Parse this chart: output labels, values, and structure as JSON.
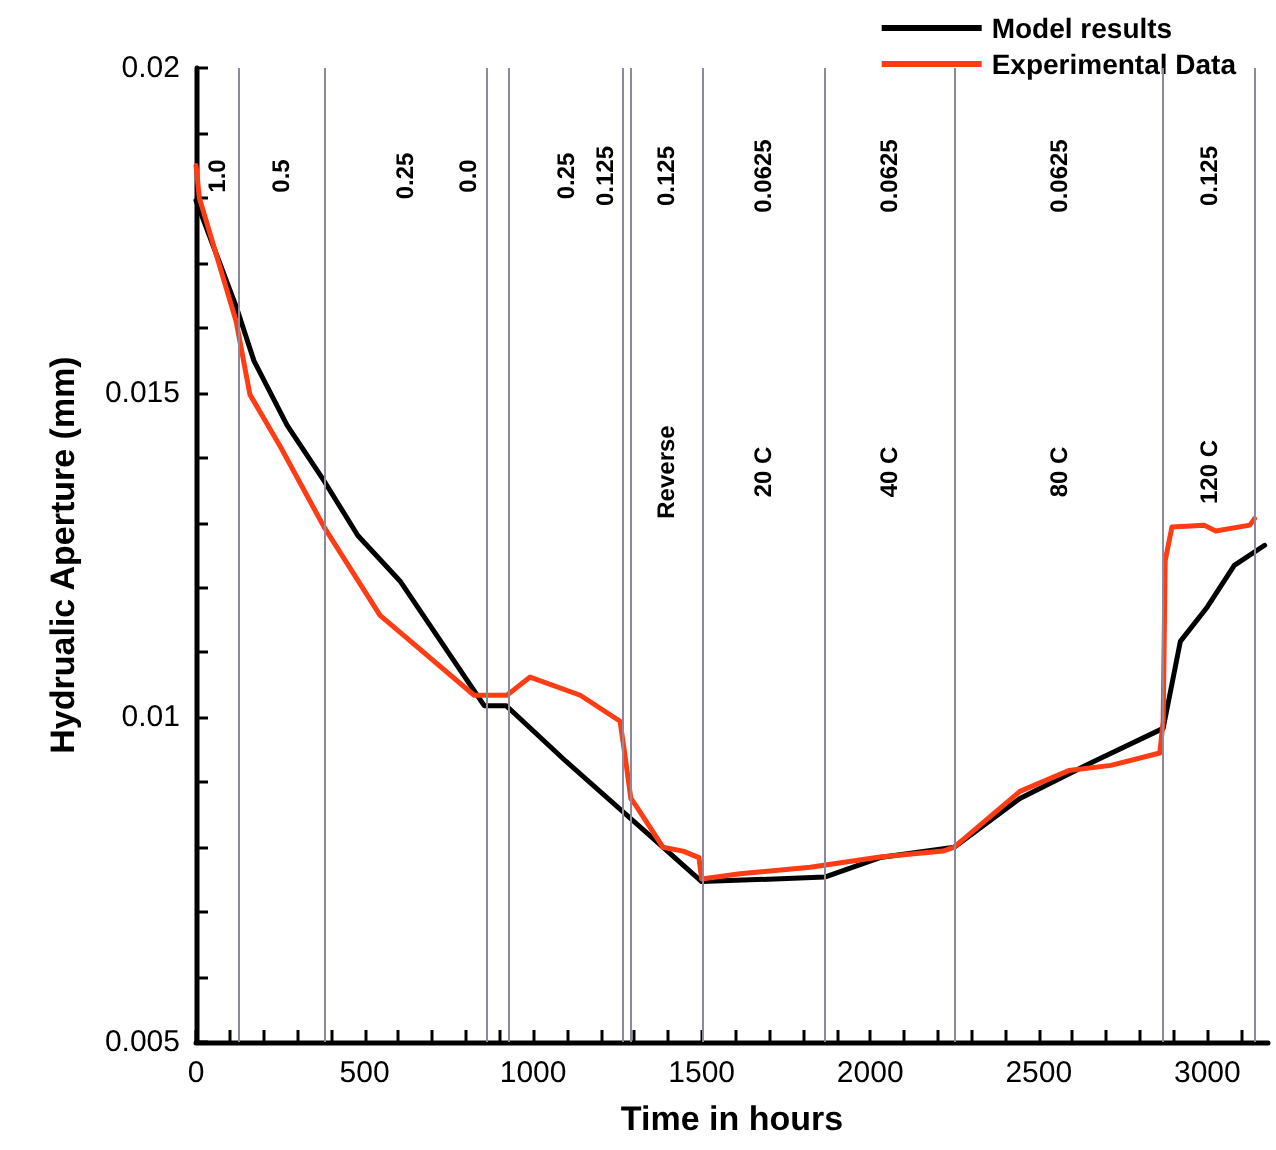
{
  "chart_data": {
    "type": "line",
    "xlabel": "Time in hours",
    "ylabel": "Hydrualic Aperture (mm)",
    "xlim": [
      0,
      3180
    ],
    "ylim": [
      0.005,
      0.02
    ],
    "xticks": [
      0,
      {
        "value": 100,
        "label": null
      },
      {
        "value": 200,
        "label": null
      },
      {
        "value": 300,
        "label": null
      },
      {
        "value": 400,
        "label": null
      },
      500,
      {
        "value": 600,
        "label": null
      },
      {
        "value": 700,
        "label": null
      },
      {
        "value": 800,
        "label": null
      },
      {
        "value": 900,
        "label": null
      },
      1000,
      {
        "value": 1100,
        "label": null
      },
      {
        "value": 1200,
        "label": null
      },
      {
        "value": 1300,
        "label": null
      },
      {
        "value": 1400,
        "label": null
      },
      1500,
      {
        "value": 1600,
        "label": null
      },
      {
        "value": 1700,
        "label": null
      },
      {
        "value": 1800,
        "label": null
      },
      {
        "value": 1900,
        "label": null
      },
      2000,
      {
        "value": 2100,
        "label": null
      },
      {
        "value": 2200,
        "label": null
      },
      {
        "value": 2300,
        "label": null
      },
      {
        "value": 2400,
        "label": null
      },
      2500,
      {
        "value": 2600,
        "label": null
      },
      {
        "value": 2700,
        "label": null
      },
      {
        "value": 2800,
        "label": null
      },
      {
        "value": 2900,
        "label": null
      },
      3000,
      {
        "value": 3100,
        "label": null
      }
    ],
    "yticks": [
      0.005,
      {
        "value": 0.006,
        "label": null
      },
      {
        "value": 0.007,
        "label": null
      },
      {
        "value": 0.008,
        "label": null
      },
      {
        "value": 0.009,
        "label": null
      },
      0.01,
      {
        "value": 0.011,
        "label": null
      },
      {
        "value": 0.012,
        "label": null
      },
      {
        "value": 0.013,
        "label": null
      },
      {
        "value": 0.014,
        "label": null
      },
      0.015,
      {
        "value": 0.016,
        "label": null
      },
      {
        "value": 0.017,
        "label": null
      },
      {
        "value": 0.018,
        "label": null
      },
      {
        "value": 0.019,
        "label": null
      },
      0.02
    ],
    "grid": false,
    "legend": "top right",
    "marker": "none",
    "line_style": "solid",
    "series": [
      {
        "name": "Model results",
        "color": "#000000",
        "x": [
          0,
          119,
          172,
          270,
          380,
          480,
          605,
          855,
          920,
          1098,
          1385,
          1500,
          1865,
          2029,
          2249,
          2444,
          2651,
          2869,
          2920,
          3000,
          3080,
          3170
        ],
        "values": [
          0.01796,
          0.01633,
          0.01549,
          0.0145,
          0.01364,
          0.0128,
          0.0121,
          0.01018,
          0.01018,
          0.00932,
          0.008,
          0.00747,
          0.00754,
          0.00784,
          0.008,
          0.00875,
          0.00929,
          0.00983,
          0.01117,
          0.0117,
          0.01234,
          0.01265
        ]
      },
      {
        "name": "Experimental Data",
        "color": "#ff3c14",
        "x": [
          0,
          10,
          119,
          160,
          250,
          380,
          546,
          623,
          825,
          922,
          991,
          1140,
          1258,
          1275,
          1290,
          1305,
          1385,
          1445,
          1492,
          1500,
          1614,
          1822,
          2029,
          2216,
          2249,
          2444,
          2589,
          2714,
          2859,
          2869,
          2875,
          2895,
          2990,
          3025,
          3126,
          3140
        ],
        "values": [
          0.0185,
          0.018,
          0.0161,
          0.01497,
          0.01417,
          0.01293,
          0.01157,
          0.01123,
          0.01034,
          0.01034,
          0.01062,
          0.01034,
          0.00994,
          0.00932,
          0.00875,
          0.00864,
          0.008,
          0.00794,
          0.00784,
          0.00751,
          0.00759,
          0.00769,
          0.00785,
          0.00794,
          0.008,
          0.00886,
          0.00918,
          0.00926,
          0.00945,
          0.00994,
          0.01241,
          0.01293,
          0.01296,
          0.01287,
          0.01296,
          0.01306
        ]
      }
    ],
    "ref_lines": [
      {
        "axis": "x",
        "value": 124,
        "color": "#8a8a9a"
      },
      {
        "axis": "x",
        "value": 382,
        "color": "#8a8a9a"
      },
      {
        "axis": "x",
        "value": 859,
        "color": "#8a8a9a"
      },
      {
        "axis": "x",
        "value": 929,
        "color": "#8a8a9a"
      },
      {
        "axis": "x",
        "value": 1266,
        "color": "#8a8a9a"
      },
      {
        "axis": "x",
        "value": 1290,
        "color": "#8a8a9a"
      },
      {
        "axis": "x",
        "value": 1500,
        "color": "#8a8a9a"
      },
      {
        "axis": "x",
        "value": 1865,
        "color": "#8a8a9a"
      },
      {
        "axis": "x",
        "value": 2249,
        "color": "#8a8a9a"
      },
      {
        "axis": "x",
        "value": 2869,
        "color": "#8a8a9a"
      },
      {
        "axis": "x",
        "value": 3139,
        "color": "#8a8a9a"
      }
    ],
    "annotations": [
      "1.0",
      "0.5",
      "0.25",
      "0.0",
      "0.25",
      "0.125",
      "0.125",
      "0.0625",
      "0.0625",
      "0.0625",
      "0.125",
      "Reverse",
      "20 C",
      "40 C",
      "80 C",
      "120 C"
    ]
  }
}
